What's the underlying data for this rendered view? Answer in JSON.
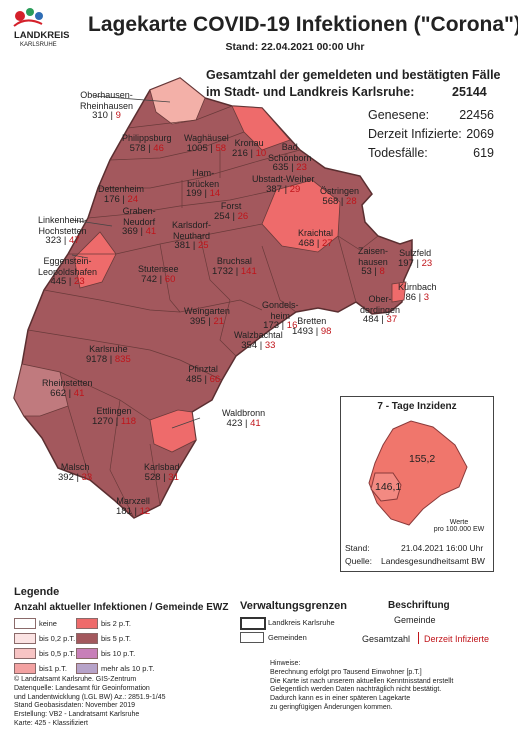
{
  "header": {
    "logo_text": "LANDKREIS",
    "logo_sub": "KARLSRUHE",
    "title": "Lagekarte COVID-19 Infektionen (\"Corona\")",
    "stand": "Stand: 22.04.2021 00:00 Uhr"
  },
  "summary": {
    "heading_line1": "Gesamtzahl der gemeldeten und bestätigten Fälle",
    "heading_line2": "im Stadt- und Landkreis Karlsruhe:",
    "total": "25144",
    "rows": [
      {
        "label": "Genesene:",
        "value": "22456"
      },
      {
        "label": "Derzeit Infizierte:",
        "value": "2069"
      },
      {
        "label": "Todesfälle:",
        "value": "619"
      }
    ]
  },
  "municipalities": [
    {
      "name": "Oberhausen-\nRheinhausen",
      "total": "310",
      "active": "9"
    },
    {
      "name": "Philippsburg",
      "total": "578",
      "active": "46"
    },
    {
      "name": "Waghäusel",
      "total": "1005",
      "active": "58"
    },
    {
      "name": "Kronau",
      "total": "216",
      "active": "10"
    },
    {
      "name": "Bad\nSchönborn",
      "total": "635",
      "active": "23"
    },
    {
      "name": "Ham-\nbrücken",
      "total": "199",
      "active": "14"
    },
    {
      "name": "Ubstadt-Weiher",
      "total": "387",
      "active": "29"
    },
    {
      "name": "Dettenheim",
      "total": "176",
      "active": "24"
    },
    {
      "name": "Forst",
      "total": "254",
      "active": "26"
    },
    {
      "name": "Östringen",
      "total": "568",
      "active": "28"
    },
    {
      "name": "Graben-\nNeudorf",
      "total": "369",
      "active": "41"
    },
    {
      "name": "Karlsdorf-\nNeuthard",
      "total": "381",
      "active": "25"
    },
    {
      "name": "Linkenheim-\nHochstetten",
      "total": "323",
      "active": "47"
    },
    {
      "name": "Kraichtal",
      "total": "468",
      "active": "27"
    },
    {
      "name": "Eggenstein-\nLeopoldshafen",
      "total": "445",
      "active": "23"
    },
    {
      "name": "Stutensee",
      "total": "742",
      "active": "60"
    },
    {
      "name": "Bruchsal",
      "total": "1732",
      "active": "141"
    },
    {
      "name": "Zaisen-\nhausen",
      "total": "53",
      "active": "8"
    },
    {
      "name": "Sulzfeld",
      "total": "197",
      "active": "23"
    },
    {
      "name": "Kürnbach",
      "total": "86",
      "active": "3"
    },
    {
      "name": "Gondels-\nheim",
      "total": "173",
      "active": "16"
    },
    {
      "name": "Ober-\nderdingen",
      "total": "484",
      "active": "37"
    },
    {
      "name": "Weingarten",
      "total": "395",
      "active": "21"
    },
    {
      "name": "Bretten",
      "total": "1493",
      "active": "98"
    },
    {
      "name": "Walzbachtal",
      "total": "354",
      "active": "33"
    },
    {
      "name": "Karlsruhe",
      "total": "9178",
      "active": "835"
    },
    {
      "name": "Pfinztal",
      "total": "485",
      "active": "66"
    },
    {
      "name": "Rheinstetten",
      "total": "662",
      "active": "41"
    },
    {
      "name": "Waldbronn",
      "total": "423",
      "active": "41"
    },
    {
      "name": "Ettlingen",
      "total": "1270",
      "active": "118"
    },
    {
      "name": "Malsch",
      "total": "392",
      "active": "33"
    },
    {
      "name": "Karlsbad",
      "total": "528",
      "active": "31"
    },
    {
      "name": "Marxzell",
      "total": "181",
      "active": "12"
    }
  ],
  "inset": {
    "title": "7 - Tage Inzidenz",
    "value_landkreis": "155,2",
    "value_stadt": "146,1",
    "unit_line1": "Werte",
    "unit_line2": "pro 100.000 EW",
    "stand_label": "Stand:",
    "stand_value": "21.04.2021 16:00 Uhr",
    "quelle_label": "Quelle:",
    "quelle_value": "Landesgesundheitsamt BW"
  },
  "legend": {
    "title": "Legende",
    "subtitle": "Anzahl aktueller Infektionen / Gemeinde EWZ",
    "classes_left": [
      "keine",
      "bis 0,2 p.T.",
      "bis 0,5 p.T.",
      "bis1 p.T."
    ],
    "classes_right": [
      "bis 2 p.T.",
      "bis 5 p.T.",
      "bis 10 p.T.",
      "mehr als 10 p.T."
    ],
    "colors": [
      "#ffffff",
      "#fbe3e3",
      "#f7c4c4",
      "#f3a2a2",
      "#ee6b6b",
      "#a3585d",
      "#c87fb8",
      "#b7a3c9"
    ],
    "admin_title": "Verwaltungsgrenzen",
    "admin_items": [
      "Landkreis Karlsruhe",
      "Gemeinden"
    ],
    "label_title": "Beschriftung",
    "label_gemeinde": "Gemeinde",
    "label_gesamt": "Gesamtzahl",
    "label_derzeit": "Derzeit Infizierte"
  },
  "footer": {
    "left_lines": [
      "© Landratsamt Karlsruhe. GIS-Zentrum",
      "Datenquelle: Landesamt für Geoinformation",
      "und Landentwicklung (LGL BW) Az.: 2851.9-1/45",
      "Stand Geobasisdaten: November 2019",
      "Erstellung: VB2 - Landratsamt Karlsruhe",
      "Karte: 425 - Klassifiziert"
    ],
    "right_lines": [
      "Hinweise:",
      "Berechnung erfolgt pro Tausend Einwohner  [p.T.]",
      "",
      "Die Karte ist nach unserem aktuellen Kenntnisstand erstellt",
      "",
      "Gelegentlich werden Daten nachträglich nicht bestätigt.",
      "Dadurch kann es in einer späteren Lagekarte",
      "zu geringfügigen Änderungen kommen."
    ]
  }
}
